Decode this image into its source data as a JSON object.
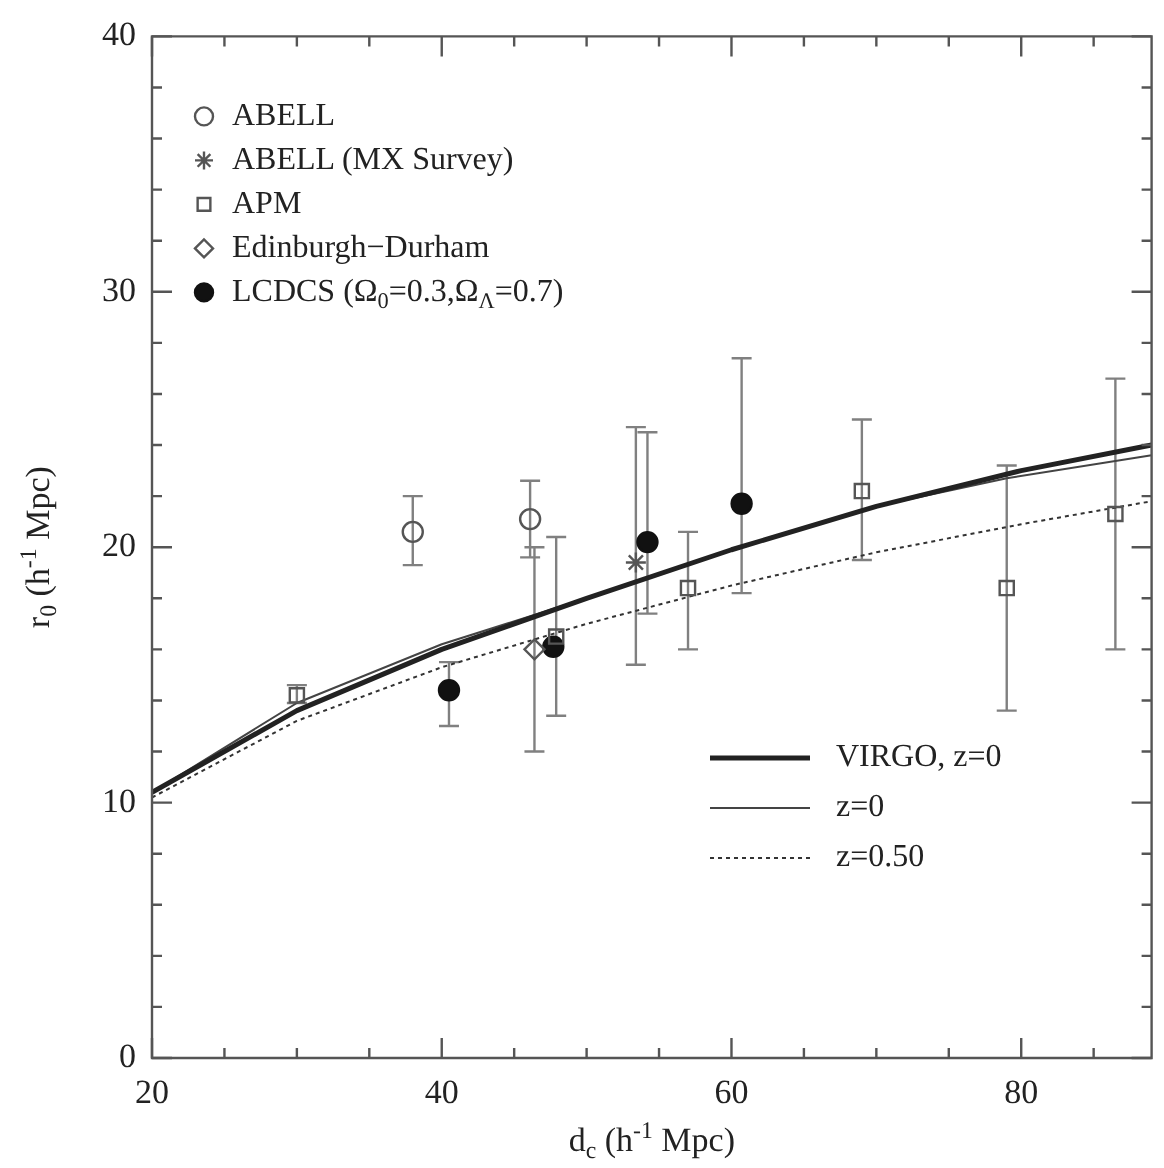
{
  "chart_data": {
    "type": "scatter",
    "xlabel": "d$_{c}$ (h$^{-1}$ Mpc)",
    "ylabel": "r$_{0}$ (h$^{-1}$ Mpc)",
    "xlim": [
      20,
      89
    ],
    "ylim": [
      0,
      40
    ],
    "xticks": [
      20,
      {
        "value": 25,
        "label": null
      },
      {
        "value": 30,
        "label": null
      },
      {
        "value": 35,
        "label": null
      },
      40,
      {
        "value": 45,
        "label": null
      },
      {
        "value": 50,
        "label": null
      },
      {
        "value": 55,
        "label": null
      },
      60,
      {
        "value": 65,
        "label": null
      },
      {
        "value": 70,
        "label": null
      },
      {
        "value": 75,
        "label": null
      },
      80,
      {
        "value": 85,
        "label": null
      }
    ],
    "yticks": [
      0,
      {
        "value": 2,
        "label": null
      },
      {
        "value": 4,
        "label": null
      },
      {
        "value": 6,
        "label": null
      },
      {
        "value": 8,
        "label": null
      },
      10,
      {
        "value": 12,
        "label": null
      },
      {
        "value": 14,
        "label": null
      },
      {
        "value": 16,
        "label": null
      },
      {
        "value": 18,
        "label": null
      },
      20,
      {
        "value": 22,
        "label": null
      },
      {
        "value": 24,
        "label": null
      },
      {
        "value": 26,
        "label": null
      },
      {
        "value": 28,
        "label": null
      },
      30,
      {
        "value": 32,
        "label": null
      },
      {
        "value": 34,
        "label": null
      },
      {
        "value": 36,
        "label": null
      },
      {
        "value": 38,
        "label": null
      },
      40
    ],
    "grid": false,
    "legend": "top left",
    "series": [
      {
        "name": "ABELL",
        "marker": "circle",
        "color": "#555555",
        "x": [
          38,
          46.1
        ],
        "values": [
          20.6,
          21.1
        ],
        "errors": [
          [
            19.3,
            22.0
          ],
          [
            19.6,
            22.6
          ]
        ]
      },
      {
        "name": "ABELL (MX Survey)",
        "marker": "cross",
        "color": "#555555",
        "x": [
          53.4
        ],
        "values": [
          19.4
        ],
        "errors": [
          [
            15.4,
            24.7
          ]
        ]
      },
      {
        "name": "APM",
        "marker": "square",
        "color": "#555555",
        "x": [
          30,
          47.9,
          57,
          69,
          79,
          86.5
        ],
        "values": [
          14.2,
          16.5,
          18.4,
          22.2,
          18.4,
          21.3
        ],
        "errors": [
          [
            13.9,
            14.6
          ],
          [
            13.4,
            20.4
          ],
          [
            16.0,
            20.6
          ],
          [
            19.5,
            25.0
          ],
          [
            13.6,
            23.2
          ],
          [
            16.0,
            26.6
          ]
        ]
      },
      {
        "name": "Edinburgh−Durham",
        "marker": "diamond",
        "color": "#555555",
        "x": [
          46.4
        ],
        "values": [
          16.0
        ],
        "errors": [
          [
            12.0,
            20.0
          ]
        ]
      },
      {
        "name": "LCDCS (Ω$_{0}$=0.3,Ω$_{Λ}$=0.7)",
        "marker": "circle",
        "color": "#111111",
        "x": [
          40.5,
          47.7,
          54.2,
          60.7
        ],
        "values": [
          14.4,
          16.1,
          20.2,
          21.7
        ],
        "errors": [
          [
            13.0,
            15.5
          ],
          null,
          [
            17.4,
            24.5
          ],
          [
            18.2,
            27.4
          ]
        ]
      },
      {
        "name": "VIRGO, z=0",
        "type": "line",
        "line_style": "solid",
        "color": "#222222",
        "x": [
          20,
          30,
          40,
          50,
          60,
          70,
          80,
          89
        ],
        "values": [
          10.4,
          13.6,
          16.0,
          18.0,
          19.9,
          21.6,
          23.0,
          24.0
        ]
      },
      {
        "name": "z=0",
        "type": "line",
        "line_style": "solid",
        "color": "#444444",
        "x": [
          20,
          30,
          40,
          50,
          60,
          70,
          79,
          89
        ],
        "values": [
          10.4,
          13.9,
          16.2,
          18.0,
          19.9,
          21.6,
          22.7,
          23.6
        ]
      },
      {
        "name": "z=0.50",
        "type": "line",
        "line_style": "dotted",
        "color": "#333333",
        "x": [
          20,
          30,
          40,
          50,
          60,
          70,
          80,
          89
        ],
        "values": [
          10.2,
          13.2,
          15.3,
          17.0,
          18.5,
          19.8,
          20.9,
          21.8
        ]
      }
    ]
  }
}
